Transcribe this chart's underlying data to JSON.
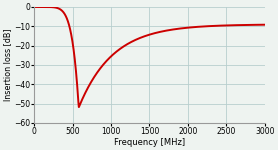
{
  "title": "",
  "xlabel": "Frequency [MHz]",
  "ylabel": "Insertion loss [dB]",
  "xlim": [
    0,
    3000
  ],
  "ylim": [
    -60,
    0
  ],
  "xticks": [
    0,
    500,
    1000,
    1500,
    2000,
    2500,
    3000
  ],
  "yticks": [
    0,
    -10,
    -20,
    -30,
    -40,
    -50,
    -60
  ],
  "line_color": "#cc0000",
  "line_width": 1.4,
  "grid_color": "#b8cece",
  "background_color": "#eef3f0",
  "resonance_freq": 580,
  "resonance_val": -52,
  "final_val": -9
}
